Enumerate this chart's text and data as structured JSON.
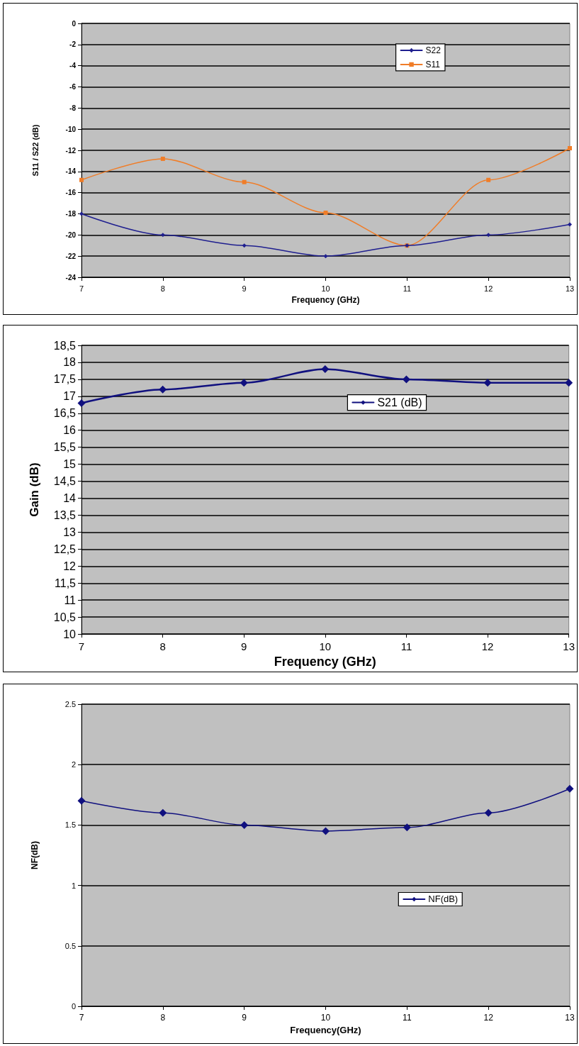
{
  "chart_data": [
    {
      "type": "line",
      "xlabel": "Frequency (GHz)",
      "ylabel": "S11 / S22 (dB)",
      "x": [
        7,
        8,
        9,
        10,
        11,
        12,
        13
      ],
      "series": [
        {
          "name": "S22",
          "color": "#1f1f8f",
          "marker": "diamond",
          "values": [
            -18,
            -20,
            -21,
            -22,
            -21,
            -20,
            -19
          ]
        },
        {
          "name": "S11",
          "color": "#f07d28",
          "marker": "square",
          "values": [
            -14.8,
            -12.8,
            -15,
            -17.9,
            -21,
            -14.8,
            -11.8
          ]
        }
      ],
      "xlim": [
        7,
        13
      ],
      "xticks": [
        7,
        8,
        9,
        10,
        11,
        12,
        13
      ],
      "ylim": [
        -24,
        0
      ],
      "yticks": [
        -24,
        -22,
        -20,
        -18,
        -16,
        -14,
        -12,
        -10,
        -8,
        -6,
        -4,
        -2,
        0
      ],
      "grid": "y",
      "legend": "top right"
    },
    {
      "type": "line",
      "xlabel": "Frequency (GHz)",
      "ylabel": "Gain (dB)",
      "x": [
        7,
        8,
        9,
        10,
        11,
        12,
        13
      ],
      "series": [
        {
          "name": "S21 (dB)",
          "color": "#10107f",
          "marker": "diamond",
          "values": [
            16.8,
            17.2,
            17.4,
            17.8,
            17.5,
            17.4,
            17.4
          ]
        }
      ],
      "xlim": [
        7,
        13
      ],
      "xticks": [
        7,
        8,
        9,
        10,
        11,
        12,
        13
      ],
      "ylim": [
        10,
        18.5
      ],
      "yticks": [
        10,
        {
          "value": 10.5,
          "label": "10,5"
        },
        11,
        {
          "value": 11.5,
          "label": "11,5"
        },
        12,
        {
          "value": 12.5,
          "label": "12,5"
        },
        13,
        {
          "value": 13.5,
          "label": "13,5"
        },
        14,
        {
          "value": 14.5,
          "label": "14,5"
        },
        15,
        {
          "value": 15.5,
          "label": "15,5"
        },
        16,
        {
          "value": 16.5,
          "label": "16,5"
        },
        17,
        {
          "value": 17.5,
          "label": "17,5"
        },
        18,
        {
          "value": 18.5,
          "label": "18,5"
        }
      ],
      "grid": "y",
      "legend": "top"
    },
    {
      "type": "line",
      "xlabel": "Frequency(GHz)",
      "ylabel": "NF(dB)",
      "x": [
        7,
        8,
        9,
        10,
        11,
        12,
        13
      ],
      "series": [
        {
          "name": "NF(dB)",
          "color": "#10107f",
          "marker": "diamond",
          "values": [
            1.7,
            1.6,
            1.5,
            1.45,
            1.48,
            1.6,
            1.8
          ]
        }
      ],
      "xlim": [
        7,
        13
      ],
      "xticks": [
        7,
        8,
        9,
        10,
        11,
        12,
        13
      ],
      "ylim": [
        0,
        2.5
      ],
      "yticks": [
        0,
        0.5,
        1,
        1.5,
        2,
        2.5
      ],
      "grid": "y",
      "legend": "right"
    }
  ]
}
